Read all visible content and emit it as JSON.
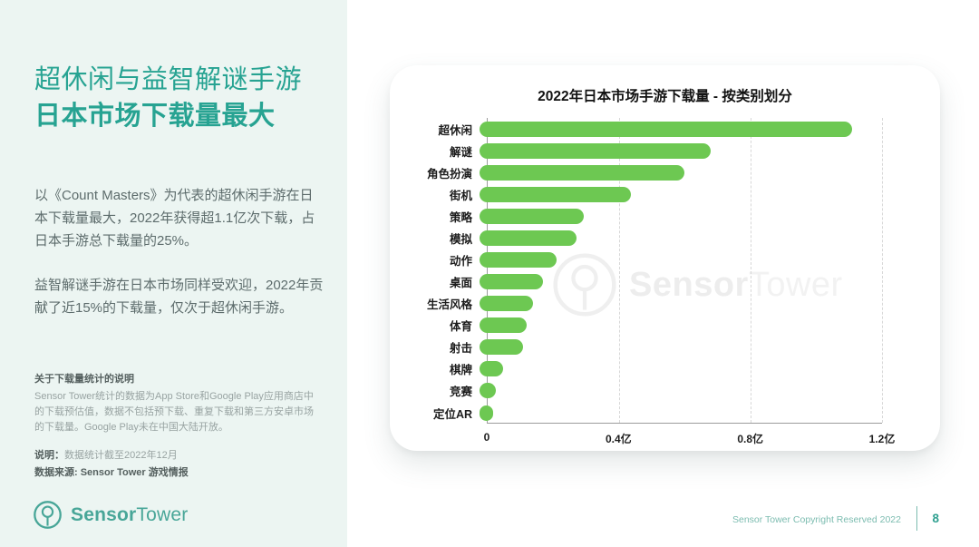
{
  "page": {
    "title_line1": "超休闲与益智解谜手游",
    "title_line2": "日本市场下载量最大",
    "paragraphs": {
      "p1": "以《Count Masters》为代表的超休闲手游在日本下载量最大，2022年获得超1.1亿次下载，占日本手游总下载量的25%。",
      "p2": "益智解谜手游在日本市场同样受欢迎，2022年贡献了近15%的下载量，仅次于超休闲手游。"
    },
    "footnote": {
      "heading": "关于下载量统计的说明",
      "body": "Sensor Tower统计的数据为App Store和Google Play应用商店中的下载预估值，数据不包括预下载、重复下载和第三方安卓市场的下载量。Google Play未在中国大陆开放。",
      "note_label": "说明：",
      "note_text": "数据统计截至2022年12月",
      "source": "数据来源: Sensor Tower 游戏情报"
    },
    "logo": {
      "part1": "Sensor",
      "part2": "Tower"
    },
    "footer": {
      "copyright": "Sensor Tower Copyright Reserved 2022",
      "page_number": "8"
    }
  },
  "chart_data": {
    "type": "bar",
    "orientation": "horizontal",
    "title": "2022年日本市场手游下载量 - 按类别划分",
    "categories": [
      "超休闲",
      "解谜",
      "角色扮演",
      "街机",
      "策略",
      "模拟",
      "动作",
      "桌面",
      "生活风格",
      "体育",
      "射击",
      "棋牌",
      "竞赛",
      "定位AR"
    ],
    "values": [
      1.11,
      0.69,
      0.61,
      0.45,
      0.31,
      0.29,
      0.23,
      0.19,
      0.16,
      0.14,
      0.13,
      0.07,
      0.05,
      0.04
    ],
    "unit": "亿",
    "xlabel": "",
    "ylabel": "",
    "xlim": [
      0,
      1.2
    ],
    "x_ticks": [
      "0",
      "0.4亿",
      "0.8亿",
      "1.2亿"
    ],
    "x_tick_values": [
      0,
      0.4,
      0.8,
      1.2
    ],
    "grid": "dashed-vertical",
    "bar_color": "#6dc852",
    "watermark_part1": "Sensor",
    "watermark_part2": "Tower"
  }
}
